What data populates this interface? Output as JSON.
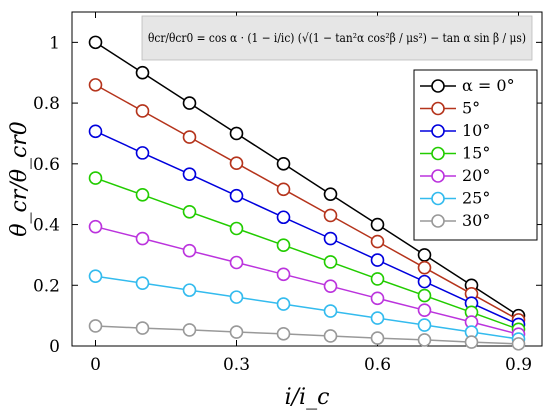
{
  "chart_data": {
    "type": "line",
    "xlabel": "i/i_c",
    "ylabel": "θ_cr/θ_cr0",
    "xlim": [
      -0.05,
      0.95
    ],
    "ylim": [
      0,
      1.1
    ],
    "xticks": [
      "0",
      "0.3",
      "0.6",
      "0.9"
    ],
    "xtick_values": [
      0,
      0.3,
      0.6,
      0.9
    ],
    "yticks": [
      "0",
      "0.2",
      "0.4",
      "0.6",
      "0.8",
      "1"
    ],
    "ytick_values": [
      0,
      0.2,
      0.4,
      0.6,
      0.8,
      1
    ],
    "grid": false,
    "legend_position": "top-right",
    "annotation": "θcr/θcr0 = cos α · (1 − i/ic) (√(1 − tan²α cos²β / μs²) − tan α sin β / μs)",
    "x": [
      0,
      0.1,
      0.2,
      0.3,
      0.4,
      0.5,
      0.6,
      0.7,
      0.8,
      0.9
    ],
    "series": [
      {
        "name": "α = 0°",
        "color": "#000000",
        "values": [
          1.0,
          0.9,
          0.8,
          0.7,
          0.6,
          0.5,
          0.4,
          0.3,
          0.2,
          0.1
        ]
      },
      {
        "name": "5°",
        "color": "#b5341c",
        "values": [
          0.86,
          0.774,
          0.688,
          0.602,
          0.516,
          0.43,
          0.344,
          0.258,
          0.172,
          0.086
        ]
      },
      {
        "name": "10°",
        "color": "#0000dd",
        "values": [
          0.707,
          0.636,
          0.566,
          0.495,
          0.424,
          0.354,
          0.283,
          0.212,
          0.141,
          0.071
        ]
      },
      {
        "name": "15°",
        "color": "#22cc00",
        "values": [
          0.553,
          0.498,
          0.442,
          0.387,
          0.332,
          0.277,
          0.221,
          0.166,
          0.111,
          0.055
        ]
      },
      {
        "name": "20°",
        "color": "#bb33dd",
        "values": [
          0.393,
          0.354,
          0.314,
          0.275,
          0.236,
          0.197,
          0.157,
          0.118,
          0.079,
          0.039
        ]
      },
      {
        "name": "25°",
        "color": "#33bbee",
        "values": [
          0.23,
          0.207,
          0.184,
          0.161,
          0.138,
          0.115,
          0.092,
          0.069,
          0.046,
          0.023
        ]
      },
      {
        "name": "30°",
        "color": "#999999",
        "values": [
          0.066,
          0.059,
          0.053,
          0.046,
          0.04,
          0.033,
          0.026,
          0.02,
          0.013,
          0.007
        ]
      }
    ]
  }
}
